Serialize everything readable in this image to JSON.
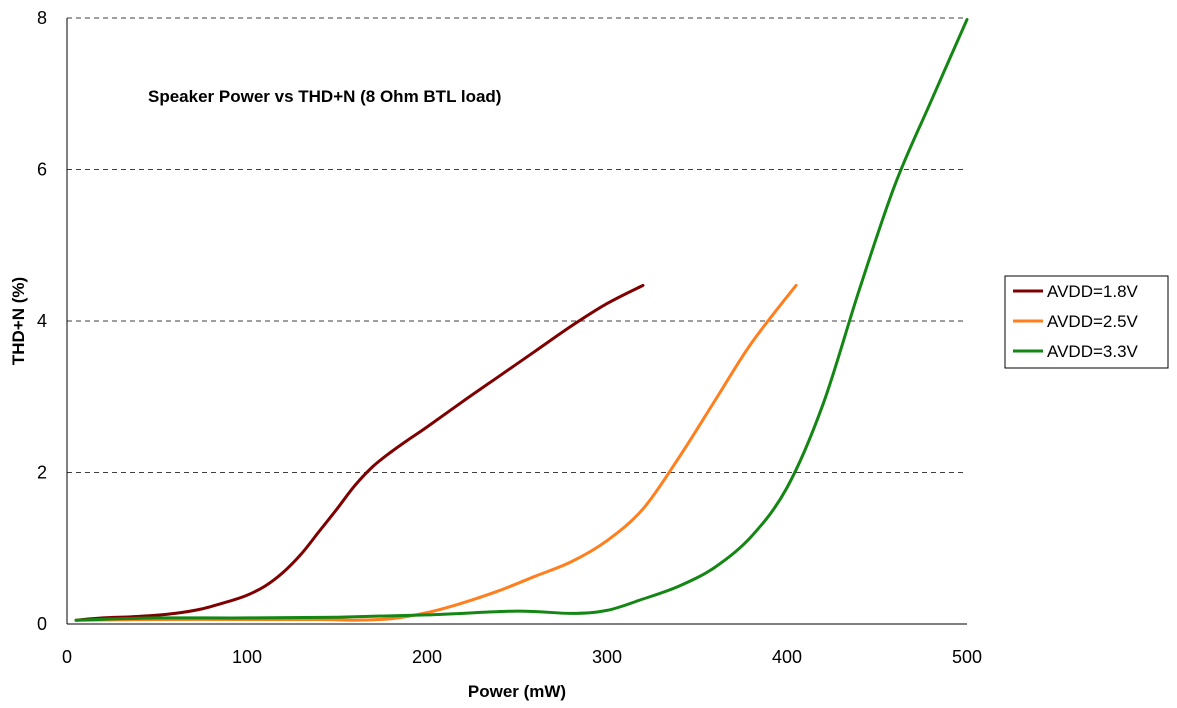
{
  "chart_data": {
    "type": "line",
    "title": "Speaker Power vs THD+N (8 Ohm BTL load)",
    "xlabel": "Power (mW)",
    "ylabel": "THD+N (%)",
    "xlim": [
      0,
      500
    ],
    "ylim": [
      0,
      8
    ],
    "xticks": [
      0,
      100,
      200,
      300,
      400,
      500
    ],
    "yticks": [
      0,
      2,
      4,
      6,
      8
    ],
    "grid": "horizontal dashed",
    "legend_position": "right",
    "series": [
      {
        "name": "AVDD=1.8V",
        "color": "#7f0000",
        "x": [
          5,
          20,
          40,
          60,
          75,
          90,
          100,
          110,
          120,
          130,
          140,
          150,
          160,
          170,
          180,
          190,
          200,
          220,
          240,
          260,
          280,
          300,
          320
        ],
        "y": [
          0.05,
          0.08,
          0.1,
          0.14,
          0.2,
          0.3,
          0.38,
          0.5,
          0.68,
          0.92,
          1.22,
          1.52,
          1.83,
          2.08,
          2.27,
          2.44,
          2.6,
          2.94,
          3.27,
          3.6,
          3.93,
          4.23,
          4.47
        ]
      },
      {
        "name": "AVDD=2.5V",
        "color": "#ff7f1e",
        "x": [
          5,
          50,
          100,
          140,
          160,
          180,
          200,
          220,
          240,
          260,
          280,
          300,
          320,
          340,
          360,
          380,
          405
        ],
        "y": [
          0.05,
          0.06,
          0.06,
          0.06,
          0.05,
          0.07,
          0.15,
          0.28,
          0.44,
          0.63,
          0.82,
          1.1,
          1.52,
          2.2,
          2.95,
          3.7,
          4.47
        ]
      },
      {
        "name": "AVDD=3.3V",
        "color": "#138613",
        "x": [
          5,
          50,
          100,
          150,
          200,
          250,
          280,
          300,
          320,
          340,
          360,
          380,
          400,
          420,
          440,
          460,
          480,
          500
        ],
        "y": [
          0.05,
          0.08,
          0.08,
          0.09,
          0.12,
          0.17,
          0.14,
          0.18,
          0.33,
          0.5,
          0.75,
          1.15,
          1.8,
          2.9,
          4.4,
          5.8,
          6.9,
          7.98
        ]
      }
    ]
  }
}
